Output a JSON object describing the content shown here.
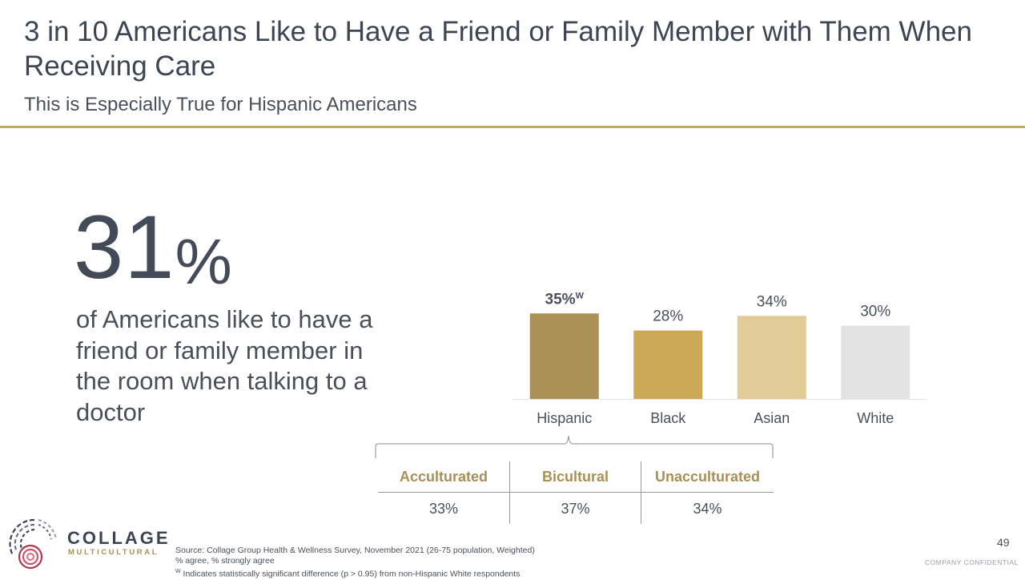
{
  "header": {
    "title": "3 in 10 Americans Like to Have a Friend or Family Member with Them When Receiving Care",
    "subtitle": "This is Especially True for Hispanic Americans"
  },
  "stat": {
    "value": "31",
    "unit": "%",
    "description": "of Americans like to have a friend or family member in the room when talking to a doctor"
  },
  "chart_data": {
    "type": "bar",
    "categories": [
      "Hispanic",
      "Black",
      "Asian",
      "White"
    ],
    "values": [
      35,
      28,
      34,
      30
    ],
    "data_labels": [
      "35%",
      "28%",
      "34%",
      "30%"
    ],
    "label_superscripts": [
      "W",
      "",
      "",
      ""
    ],
    "label_bold": [
      true,
      false,
      false,
      false
    ],
    "colors": [
      "#ab9155",
      "#cda856",
      "#e1cb97",
      "#e3e3e3"
    ],
    "ylim": [
      0,
      40
    ],
    "grid": false,
    "title": "",
    "xlabel": "",
    "ylabel": ""
  },
  "hispanic_breakdown": {
    "columns": [
      {
        "header": "Acculturated",
        "value": "33%"
      },
      {
        "header": "Bicultural",
        "value": "37%"
      },
      {
        "header": "Unacculturated",
        "value": "34%"
      }
    ]
  },
  "logo": {
    "word": "COLLAGE",
    "sub": "MULTICULTURAL"
  },
  "footer": {
    "source": "Source: Collage Group Health & Wellness Survey, November 2021 (26-75 population, Weighted)",
    "note": "% agree, % strongly agree",
    "sig_marker": "W",
    "sig_note": "Indicates statistically significant difference (p > 0.95) from non-Hispanic White respondents",
    "page_number": "49",
    "confidential": "COMPANY CONFIDENTIAL"
  },
  "theme": {
    "accent": "#c2a760",
    "text": "#4a4f5a"
  }
}
